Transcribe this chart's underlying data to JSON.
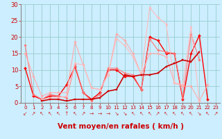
{
  "bg_color": "#cceeff",
  "grid_color": "#99cccc",
  "xlabel": "Vent moyen/en rafales ( km/h )",
  "xlim": [
    -0.5,
    23.5
  ],
  "ylim": [
    0,
    30
  ],
  "yticks": [
    0,
    5,
    10,
    15,
    20,
    25,
    30
  ],
  "xticks": [
    0,
    1,
    2,
    3,
    4,
    5,
    6,
    7,
    8,
    9,
    10,
    11,
    12,
    13,
    14,
    15,
    16,
    17,
    18,
    19,
    20,
    21,
    22,
    23
  ],
  "wind_arrows": [
    "↙",
    "↗",
    "↖",
    "↖",
    "↖",
    "↑",
    "↖",
    "↗",
    "→",
    "→",
    "→",
    "↘",
    "↘",
    "↖",
    "↖",
    "↖",
    "↗",
    "↖",
    "↖",
    "↖",
    "↖",
    "↘",
    "↖",
    "↗"
  ],
  "series": [
    {
      "x": [
        0,
        1,
        2,
        3,
        4,
        5,
        6,
        7,
        8,
        9,
        10,
        11,
        12,
        13,
        14,
        15,
        16,
        17,
        18,
        19,
        20,
        21,
        22
      ],
      "y": [
        10.5,
        2,
        1,
        2,
        2,
        5.5,
        11,
        3,
        1,
        3,
        10,
        10,
        8,
        8,
        4,
        20,
        19,
        15,
        15,
        1,
        15,
        20.5,
        1
      ],
      "color": "#ff0000",
      "lw": 1.0,
      "marker": "D",
      "ms": 2.0
    },
    {
      "x": [
        0,
        1,
        2,
        3,
        4,
        5,
        6,
        7,
        8,
        9,
        10,
        11,
        12,
        13,
        14,
        15,
        16,
        17,
        18,
        19,
        20,
        21
      ],
      "y": [
        17.5,
        2.5,
        1,
        2.5,
        2,
        1.5,
        11.5,
        3,
        0.5,
        2.5,
        10.5,
        10.5,
        9,
        8.5,
        4,
        19.5,
        16,
        15.5,
        15,
        1.5,
        21,
        13
      ],
      "color": "#ff7777",
      "lw": 0.8,
      "marker": "D",
      "ms": 1.8
    },
    {
      "x": [
        0,
        1,
        2,
        3,
        4,
        5,
        6,
        7,
        8,
        9,
        10,
        11,
        12,
        13,
        14,
        15,
        16,
        17,
        18,
        19,
        20,
        21,
        22
      ],
      "y": [
        15,
        8,
        2,
        3,
        3,
        3,
        18.5,
        11.5,
        4.5,
        4,
        8.5,
        21,
        19,
        15,
        8.5,
        15,
        15,
        14,
        6,
        5,
        5,
        0.5,
        5.5
      ],
      "color": "#ffaaaa",
      "lw": 0.8,
      "marker": "D",
      "ms": 1.8
    },
    {
      "x": [
        2,
        3,
        4,
        5,
        6,
        7,
        8,
        9,
        10,
        11,
        12,
        13,
        14,
        15,
        16,
        17,
        18,
        19,
        20,
        21
      ],
      "y": [
        1,
        1.5,
        1.5,
        2,
        12,
        11.5,
        4.5,
        4,
        8.5,
        19.5,
        17.5,
        14,
        8.5,
        29,
        26,
        24,
        6,
        5.5,
        23,
        0.5
      ],
      "color": "#ffbbbb",
      "lw": 0.8,
      "marker": "D",
      "ms": 1.8
    },
    {
      "x": [
        2,
        3,
        4,
        5,
        6,
        7,
        8,
        9,
        10,
        11,
        12,
        13,
        14,
        15,
        16,
        17,
        18,
        19,
        20,
        21
      ],
      "y": [
        0.5,
        1,
        1,
        0.5,
        1,
        1,
        1,
        1.5,
        3.5,
        4,
        8.5,
        8,
        8.5,
        8.5,
        9,
        11,
        12,
        13,
        12.5,
        15.5
      ],
      "color": "#cc0000",
      "lw": 1.2,
      "marker": "s",
      "ms": 2.0
    }
  ],
  "xlabel_color": "#cc0000",
  "xlabel_fontsize": 7.5,
  "tick_color": "#cc0000",
  "xtick_fontsize": 5.0,
  "ytick_fontsize": 6.0,
  "arrow_fontsize": 5.5
}
